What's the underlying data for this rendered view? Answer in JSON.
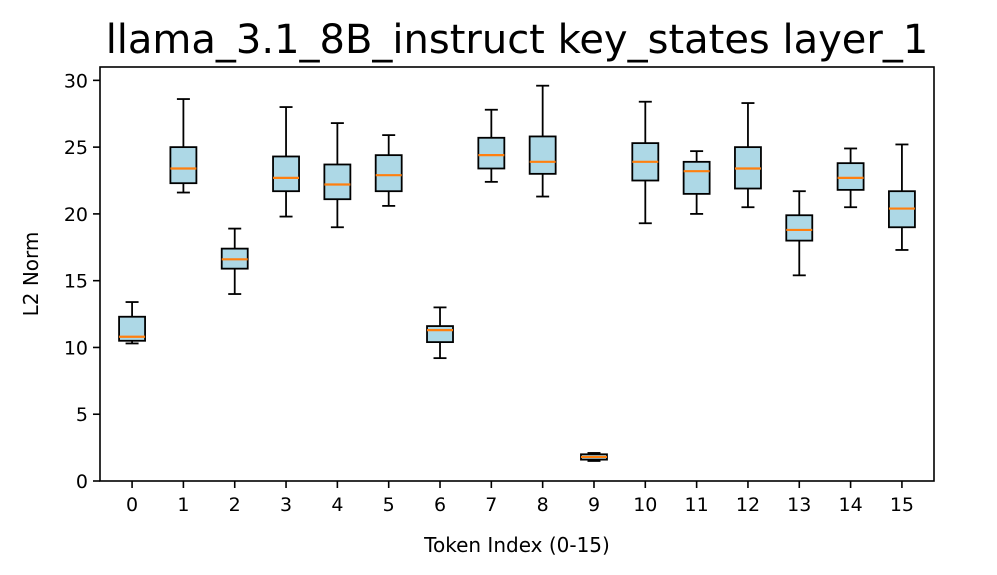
{
  "chart_data": {
    "type": "box",
    "title": "llama_3.1_8B_instruct key_states layer_1",
    "xlabel": "Token Index (0-15)",
    "ylabel": "L2 Norm",
    "ylim": [
      0,
      31
    ],
    "yticks": [
      0,
      5,
      10,
      15,
      20,
      25,
      30
    ],
    "categories": [
      "0",
      "1",
      "2",
      "3",
      "4",
      "5",
      "6",
      "7",
      "8",
      "9",
      "10",
      "11",
      "12",
      "13",
      "14",
      "15"
    ],
    "grid": false,
    "colors": {
      "box_fill": "#add8e6",
      "median": "#ff7f0e",
      "edge": "#000000"
    },
    "boxes": [
      {
        "whislo": 10.3,
        "q1": 10.5,
        "med": 10.8,
        "q3": 12.3,
        "whishi": 13.4
      },
      {
        "whislo": 21.6,
        "q1": 22.3,
        "med": 23.4,
        "q3": 25.0,
        "whishi": 28.6
      },
      {
        "whislo": 14.0,
        "q1": 15.9,
        "med": 16.6,
        "q3": 17.4,
        "whishi": 18.9
      },
      {
        "whislo": 19.8,
        "q1": 21.7,
        "med": 22.7,
        "q3": 24.3,
        "whishi": 28.0
      },
      {
        "whislo": 19.0,
        "q1": 21.1,
        "med": 22.2,
        "q3": 23.7,
        "whishi": 26.8
      },
      {
        "whislo": 20.6,
        "q1": 21.7,
        "med": 22.9,
        "q3": 24.4,
        "whishi": 25.9
      },
      {
        "whislo": 9.2,
        "q1": 10.4,
        "med": 11.3,
        "q3": 11.6,
        "whishi": 13.0
      },
      {
        "whislo": 22.4,
        "q1": 23.4,
        "med": 24.4,
        "q3": 25.7,
        "whishi": 27.8
      },
      {
        "whislo": 21.3,
        "q1": 23.0,
        "med": 23.9,
        "q3": 25.8,
        "whishi": 29.6
      },
      {
        "whislo": 1.5,
        "q1": 1.6,
        "med": 1.8,
        "q3": 2.0,
        "whishi": 2.1
      },
      {
        "whislo": 19.3,
        "q1": 22.5,
        "med": 23.9,
        "q3": 25.3,
        "whishi": 28.4
      },
      {
        "whislo": 20.0,
        "q1": 21.5,
        "med": 23.2,
        "q3": 23.9,
        "whishi": 24.7
      },
      {
        "whislo": 20.5,
        "q1": 21.9,
        "med": 23.4,
        "q3": 25.0,
        "whishi": 28.3
      },
      {
        "whislo": 15.4,
        "q1": 18.0,
        "med": 18.8,
        "q3": 19.9,
        "whishi": 21.7
      },
      {
        "whislo": 20.5,
        "q1": 21.8,
        "med": 22.7,
        "q3": 23.8,
        "whishi": 24.9
      },
      {
        "whislo": 17.3,
        "q1": 19.0,
        "med": 20.4,
        "q3": 21.7,
        "whishi": 25.2
      }
    ]
  }
}
